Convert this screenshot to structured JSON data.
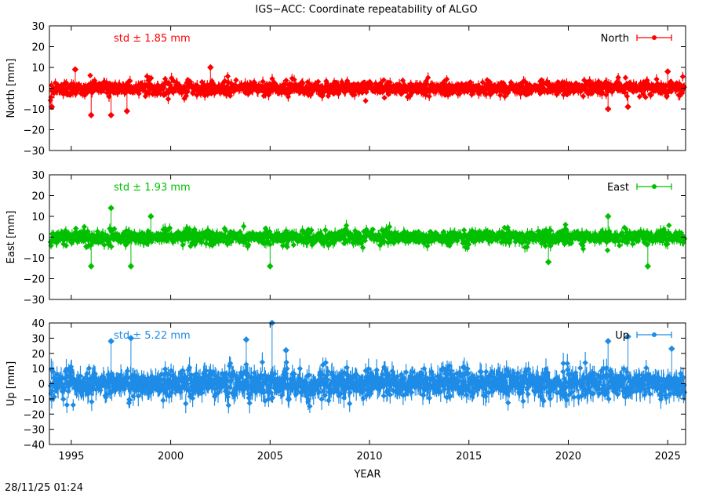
{
  "title": "IGS−ACC: Coordinate repeatability of ALGO",
  "timestamp": "28/11/25 01:24",
  "chart_data": [
    {
      "type": "scatter",
      "panel": "north",
      "ylabel": "North [mm]",
      "xlabel": "",
      "series": [
        {
          "name": "North",
          "color": "#ff0000"
        }
      ],
      "std_label": "std ± 1.85 mm",
      "std": 1.85,
      "xlim": [
        1993.9,
        2025.9
      ],
      "ylim": [
        -30,
        30
      ],
      "yticks": [
        -30,
        -20,
        -10,
        0,
        10,
        20,
        30
      ],
      "ytick_labels": [
        "−30",
        "−20",
        "−10",
        "0",
        "10",
        "20",
        "30"
      ],
      "data_extent": [
        1993.95,
        2025.85
      ],
      "outliers": [
        [
          1994.02,
          -9
        ],
        [
          1995.2,
          9
        ],
        [
          1996.0,
          -13
        ],
        [
          1997.0,
          -13
        ],
        [
          1997.8,
          -11
        ],
        [
          2002.0,
          10
        ],
        [
          2022.0,
          -10
        ],
        [
          2023.0,
          -9
        ],
        [
          2025.0,
          8
        ]
      ],
      "legend": "top-right",
      "grid": false
    },
    {
      "type": "scatter",
      "panel": "east",
      "ylabel": "East [mm]",
      "xlabel": "",
      "series": [
        {
          "name": "East",
          "color": "#00c000"
        }
      ],
      "std_label": "std ± 1.93 mm",
      "std": 1.93,
      "xlim": [
        1993.9,
        2025.9
      ],
      "ylim": [
        -30,
        30
      ],
      "yticks": [
        -30,
        -20,
        -10,
        0,
        10,
        20,
        30
      ],
      "ytick_labels": [
        "−30",
        "−20",
        "−10",
        "0",
        "10",
        "20",
        "30"
      ],
      "data_extent": [
        1993.95,
        2025.85
      ],
      "outliers": [
        [
          1996.0,
          -14
        ],
        [
          1997.0,
          14
        ],
        [
          1998.0,
          -14
        ],
        [
          1999.0,
          10
        ],
        [
          2005.0,
          -14
        ],
        [
          2019.0,
          -12
        ],
        [
          2022.0,
          10
        ],
        [
          2024.0,
          -14
        ]
      ],
      "legend": "top-right",
      "grid": false
    },
    {
      "type": "scatter",
      "panel": "up",
      "ylabel": "Up [mm]",
      "xlabel": "YEAR",
      "series": [
        {
          "name": "Up",
          "color": "#1e8ce6"
        }
      ],
      "std_label": "std ± 5.22 mm",
      "std": 5.22,
      "xlim": [
        1993.9,
        2025.9
      ],
      "ylim": [
        -40,
        40
      ],
      "yticks": [
        -40,
        -30,
        -20,
        -10,
        0,
        10,
        20,
        30,
        40
      ],
      "ytick_labels": [
        "−40",
        "−30",
        "−20",
        "−10",
        "0",
        "10",
        "20",
        "30",
        "40"
      ],
      "xticks": [
        1995,
        2000,
        2005,
        2010,
        2015,
        2020,
        2025
      ],
      "xtick_labels": [
        "1995",
        "2000",
        "2005",
        "2010",
        "2015",
        "2020",
        "2025"
      ],
      "data_extent": [
        1993.95,
        2025.85
      ],
      "outliers": [
        [
          1997.0,
          28
        ],
        [
          1998.0,
          30
        ],
        [
          2003.8,
          29
        ],
        [
          2005.1,
          40
        ],
        [
          2005.8,
          22
        ],
        [
          2022.0,
          28
        ],
        [
          2023.0,
          31
        ],
        [
          2025.2,
          23
        ]
      ],
      "legend": "top-right",
      "grid": false
    }
  ]
}
